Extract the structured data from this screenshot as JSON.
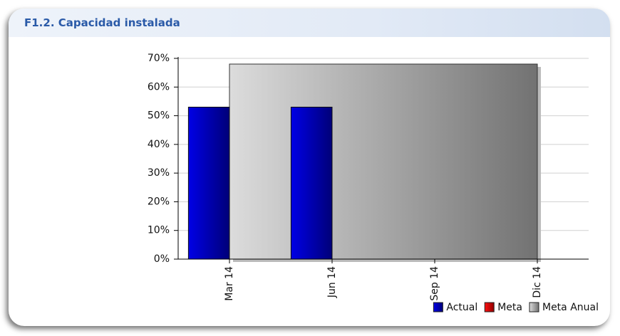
{
  "header": {
    "title": "F1.2. Capacidad instalada"
  },
  "chart_data": {
    "type": "bar",
    "categories": [
      "Mar 14",
      "Jun 14",
      "Sep 14",
      "Dic 14"
    ],
    "series": [
      {
        "name": "Actual",
        "color": "#0000d8",
        "values": [
          53,
          53,
          null,
          null
        ]
      },
      {
        "name": "Meta",
        "color": "#e00000",
        "values": [
          null,
          null,
          null,
          null
        ]
      },
      {
        "name": "Meta Anual",
        "color": "#c8c8c8",
        "type": "area",
        "values": [
          68,
          68,
          68,
          68
        ]
      }
    ],
    "ylim": [
      0,
      70
    ],
    "yticks": [
      {
        "value": 0,
        "label": "0%"
      },
      {
        "value": 10,
        "label": "10%"
      },
      {
        "value": 20,
        "label": "20%"
      },
      {
        "value": 30,
        "label": "30%"
      },
      {
        "value": 40,
        "label": "40%"
      },
      {
        "value": 50,
        "label": "50%"
      },
      {
        "value": 60,
        "label": "60%"
      },
      {
        "value": 70,
        "label": "70%"
      }
    ],
    "grid": true,
    "legend": "bottom-right"
  }
}
